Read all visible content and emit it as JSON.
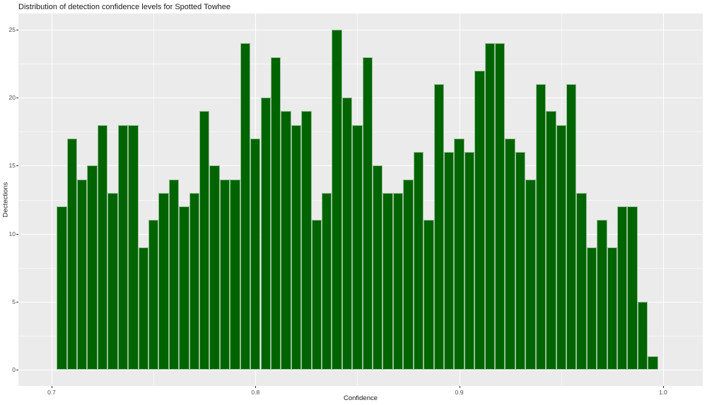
{
  "chart": {
    "title": "Distribution of detection confidence levels for Spotted Towhee",
    "xlabel": "Confidence",
    "ylabel": "Dectections"
  },
  "chart_data": {
    "type": "bar",
    "subtype": "histogram",
    "title": "Distribution of detection confidence levels for Spotted Towhee",
    "xlabel": "Confidence",
    "ylabel": "Dectections",
    "bin_start": 0.7025,
    "bin_width": 0.005,
    "counts": [
      12,
      17,
      14,
      15,
      18,
      13,
      18,
      18,
      9,
      11,
      13,
      14,
      12,
      13,
      19,
      15,
      14,
      14,
      24,
      17,
      20,
      23,
      19,
      18,
      19,
      11,
      13,
      25,
      20,
      18,
      23,
      15,
      13,
      13,
      14,
      16,
      11,
      21,
      16,
      17,
      16,
      22,
      24,
      24,
      17,
      16,
      14,
      21,
      19,
      18,
      21,
      13,
      9,
      11,
      9,
      12,
      12,
      5,
      1
    ],
    "x_ticks": [
      0.7,
      0.8,
      0.9,
      1.0
    ],
    "x_tick_labels": [
      "0.7",
      "0.8",
      "0.9",
      "1.0"
    ],
    "x_minor_ticks": [
      0.75,
      0.85,
      0.95
    ],
    "y_ticks": [
      0,
      5,
      10,
      15,
      20,
      25
    ],
    "y_tick_labels": [
      "0",
      "5",
      "10",
      "15",
      "20",
      "25"
    ],
    "y_minor_ticks": [
      2.5,
      7.5,
      12.5,
      17.5,
      22.5
    ],
    "ylim": [
      0,
      25
    ],
    "grid": true,
    "legend_position": "none",
    "colors": {
      "bar_fill": "#006400",
      "bar_border": "#96BF96",
      "panel_background": "#EBEBEB",
      "grid_major": "#FFFFFF",
      "axis_text": "#4D4D4D",
      "title_text": "#1A1A1A"
    }
  }
}
